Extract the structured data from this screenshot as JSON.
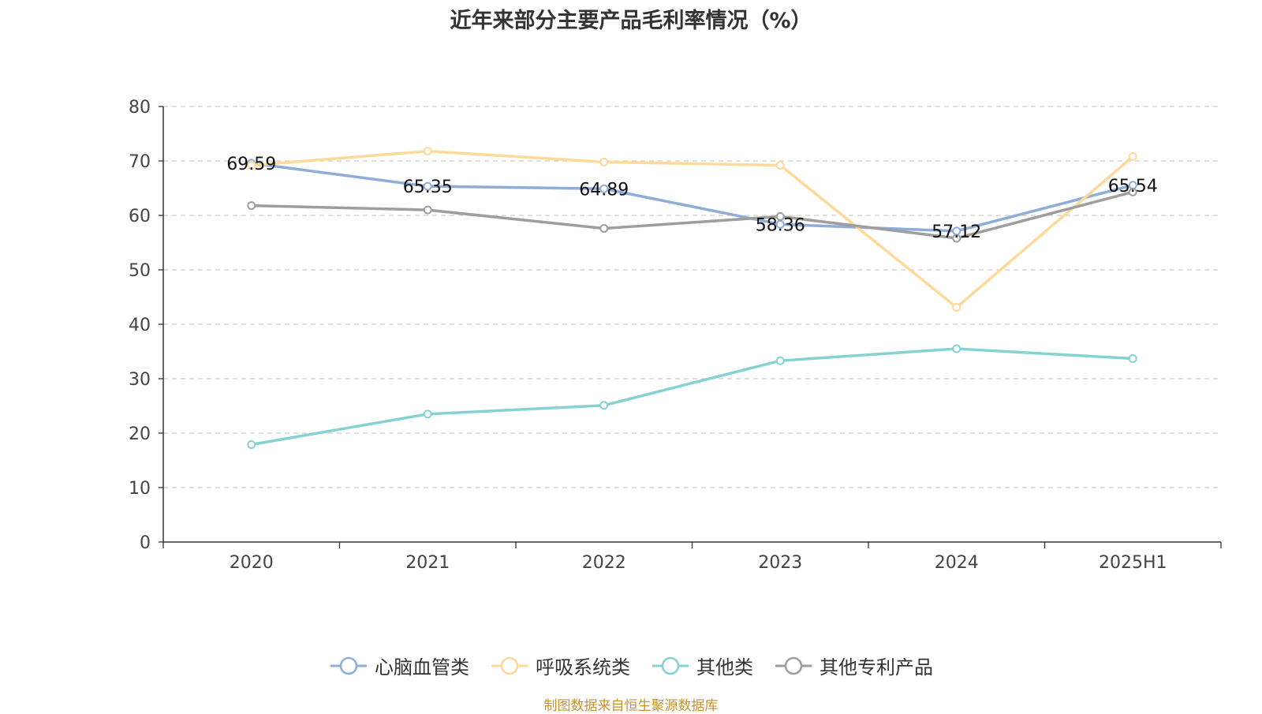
{
  "chart_data": {
    "type": "line",
    "title": "近年来部分主要产品毛利率情况（%）",
    "categories": [
      "2020",
      "2021",
      "2022",
      "2023",
      "2024",
      "2025H1"
    ],
    "ylim": [
      0,
      80
    ],
    "yticks": [
      "0",
      "10",
      "20",
      "30",
      "40",
      "50",
      "60",
      "70",
      "80"
    ],
    "grid": true,
    "legend_position": "bottom",
    "series": [
      {
        "name": "心脑血管类",
        "color": "#8fadd9",
        "values": [
          69.59,
          65.35,
          64.89,
          58.36,
          57.12,
          65.54
        ],
        "labels": [
          "69.59",
          "65.35",
          "64.89",
          "58.36",
          "57.12",
          "65.54"
        ]
      },
      {
        "name": "呼吸系统类",
        "color": "#fdd99a",
        "values": [
          69.2,
          71.8,
          69.8,
          69.2,
          43.1,
          70.8
        ]
      },
      {
        "name": "其他类",
        "color": "#86d2d2",
        "values": [
          17.9,
          23.5,
          25.1,
          33.3,
          35.5,
          33.7
        ]
      },
      {
        "name": "其他专利产品",
        "color": "#9e9e9e",
        "values": [
          61.8,
          61.0,
          57.6,
          59.8,
          55.8,
          64.3
        ]
      }
    ]
  },
  "source_note": "制图数据来自恒生聚源数据库"
}
